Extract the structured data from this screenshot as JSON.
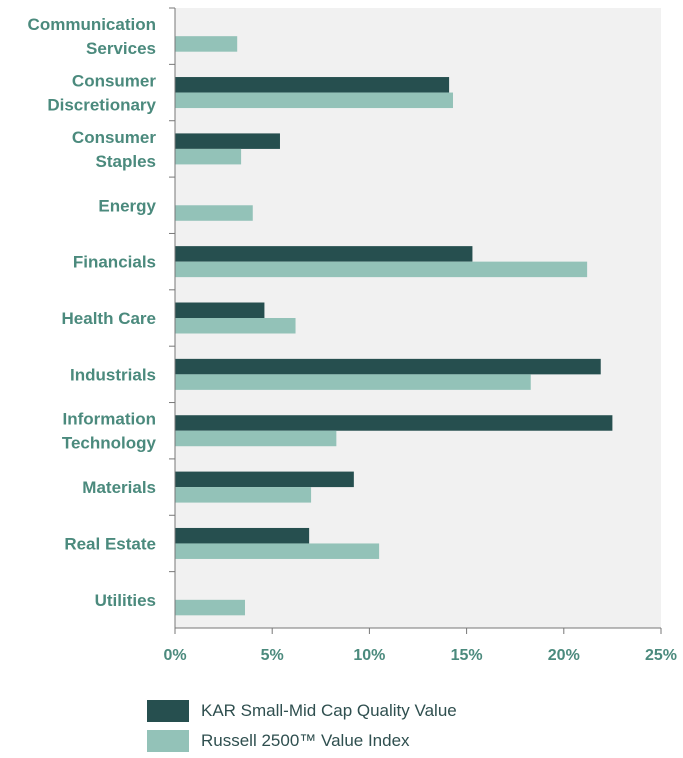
{
  "colors": {
    "kar": "#264f4f",
    "russell": "#93c2b8",
    "plot_bg": "#f1f1f1",
    "label": "#4b8a7d",
    "axis": "#777777"
  },
  "chart_data": {
    "type": "bar",
    "orientation": "horizontal",
    "categories": [
      "Communication Services",
      "Consumer Discretionary",
      "Consumer Staples",
      "Energy",
      "Financials",
      "Health Care",
      "Industrials",
      "Information Technology",
      "Materials",
      "Real Estate",
      "Utilities"
    ],
    "category_lines": [
      [
        "Communication",
        "Services"
      ],
      [
        "Consumer",
        "Discretionary"
      ],
      [
        "Consumer",
        "Staples"
      ],
      [
        "Energy"
      ],
      [
        "Financials"
      ],
      [
        "Health Care"
      ],
      [
        "Industrials"
      ],
      [
        "Information",
        "Technology"
      ],
      [
        "Materials"
      ],
      [
        "Real Estate"
      ],
      [
        "Utilities"
      ]
    ],
    "series": [
      {
        "name": "KAR Small-Mid Cap Quality Value",
        "values": [
          0,
          14.1,
          5.4,
          0,
          15.3,
          4.6,
          21.9,
          22.5,
          9.2,
          6.9,
          0
        ]
      },
      {
        "name": "Russell 2500™ Value Index",
        "values": [
          3.2,
          14.3,
          3.4,
          4.0,
          21.2,
          6.2,
          18.3,
          8.3,
          7.0,
          10.5,
          3.6
        ]
      }
    ],
    "xlim": [
      0,
      25
    ],
    "xticks": [
      0,
      5,
      10,
      15,
      20,
      25
    ],
    "xtick_labels": [
      "0%",
      "5%",
      "10%",
      "15%",
      "20%",
      "25%"
    ],
    "grid": false,
    "legend_position": "bottom-center"
  },
  "legend": {
    "items": [
      {
        "label": "KAR Small-Mid Cap Quality Value"
      },
      {
        "label": "Russell 2500™ Value Index"
      }
    ]
  }
}
